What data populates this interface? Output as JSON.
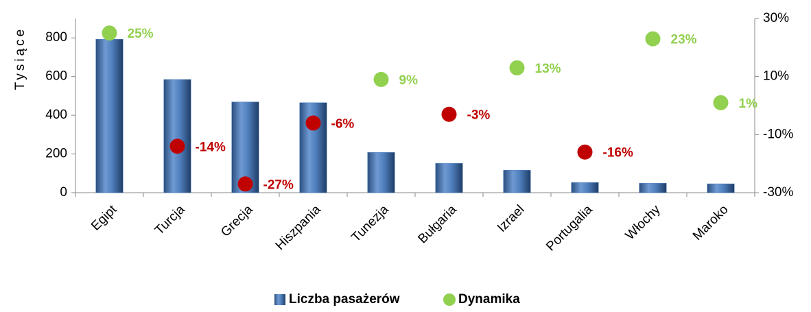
{
  "chart_data": {
    "type": "bar",
    "y_label": "Tysiące",
    "categories": [
      "Egipt",
      "Turcja",
      "Grecja",
      "Hiszpania",
      "Tunezja",
      "Bułgaria",
      "Izrael",
      "Portugalia",
      "Włochy",
      "Maroko"
    ],
    "series": [
      {
        "name": "Liczba pasażerów",
        "color": "#4f81bd",
        "values": [
          793,
          585,
          469,
          465,
          208,
          152,
          116,
          53,
          49,
          46
        ]
      },
      {
        "name": "Dynamika",
        "type": "scatter",
        "axis": "y2",
        "color": "#92d050",
        "colors": [
          "#92d050",
          "#c00000",
          "#c00000",
          "#c00000",
          "#92d050",
          "#c00000",
          "#92d050",
          "#c00000",
          "#92d050",
          "#92d050"
        ],
        "values": [
          25,
          -14,
          -27,
          -6,
          9,
          -3,
          13,
          -16,
          23,
          1
        ],
        "value_labels": [
          "25%",
          "-14%",
          "-27%",
          "-6%",
          "9%",
          "-3%",
          "13%",
          "-16%",
          "23%",
          "1%"
        ]
      }
    ],
    "ylim": [
      0,
      900
    ],
    "yticks": [
      0,
      200,
      400,
      600,
      800
    ],
    "y2lim": [
      -30,
      30
    ],
    "y2ticks": [
      {
        "value": -30,
        "label": "-30%"
      },
      {
        "value": -10,
        "label": "-10%"
      },
      {
        "value": 10,
        "label": "10%"
      },
      {
        "value": 30,
        "label": "30%"
      }
    ],
    "legend": "bottom"
  }
}
